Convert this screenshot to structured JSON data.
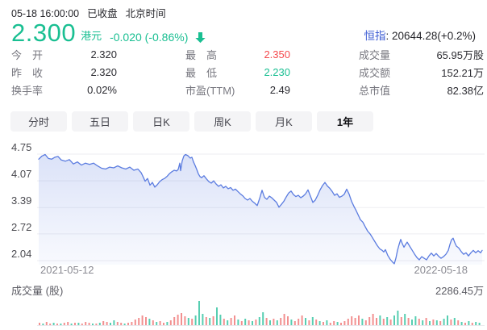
{
  "header": {
    "time": "05-18 16:00:00",
    "status": "已收盘",
    "timezone": "北京时间",
    "price": "2.300",
    "currency": "港元",
    "change": "-0.020 (-0.86%)",
    "index": {
      "label": "恒指",
      "value": ": 20644.28(+0.2%)"
    }
  },
  "colors": {
    "green": "#1abf92",
    "red": "#f5494d",
    "link_blue": "#3d5cd3",
    "line_blue": "#5b7ce0",
    "grid": "#ededf1",
    "vol_red": "#f29090",
    "vol_green": "#57ceb1"
  },
  "stats": {
    "cells": [
      {
        "label": "今　开",
        "value": "2.320",
        "color": "default"
      },
      {
        "label": "最　高",
        "value": "2.350",
        "color": "red"
      },
      {
        "label": "成交量",
        "value": "65.95万股",
        "color": "default"
      },
      {
        "label": "昨　收",
        "value": "2.320",
        "color": "default"
      },
      {
        "label": "最　低",
        "value": "2.230",
        "color": "green"
      },
      {
        "label": "成交额",
        "value": "152.21万",
        "color": "default"
      },
      {
        "label": "换手率",
        "value": "0.02%",
        "color": "default"
      },
      {
        "label": "市盈(TTM)",
        "value": "2.49",
        "color": "default"
      },
      {
        "label": "总市值",
        "value": "82.38亿",
        "color": "default"
      }
    ]
  },
  "tabs": {
    "items": [
      {
        "label": "分时",
        "active": false
      },
      {
        "label": "五日",
        "active": false
      },
      {
        "label": "日K",
        "active": false
      },
      {
        "label": "周K",
        "active": false
      },
      {
        "label": "月K",
        "active": false
      },
      {
        "label": "1年",
        "active": true
      }
    ]
  },
  "chart_data": {
    "type": "area",
    "title": "",
    "xlabel": "",
    "ylabel": "",
    "x_start_label": "2021-05-12",
    "x_end_label": "2022-05-18",
    "y_ticks": [
      4.75,
      4.07,
      3.39,
      2.72,
      2.04
    ],
    "y_range": [
      2.04,
      4.75
    ],
    "x_domain": [
      0,
      550
    ],
    "points": [
      [
        0,
        4.62
      ],
      [
        4,
        4.7
      ],
      [
        8,
        4.74
      ],
      [
        12,
        4.64
      ],
      [
        16,
        4.62
      ],
      [
        20,
        4.67
      ],
      [
        24,
        4.69
      ],
      [
        28,
        4.6
      ],
      [
        33,
        4.57
      ],
      [
        38,
        4.61
      ],
      [
        43,
        4.5
      ],
      [
        48,
        4.55
      ],
      [
        53,
        4.47
      ],
      [
        58,
        4.52
      ],
      [
        63,
        4.49
      ],
      [
        68,
        4.52
      ],
      [
        73,
        4.45
      ],
      [
        78,
        4.39
      ],
      [
        83,
        4.37
      ],
      [
        88,
        4.42
      ],
      [
        93,
        4.4
      ],
      [
        98,
        4.45
      ],
      [
        103,
        4.4
      ],
      [
        108,
        4.37
      ],
      [
        113,
        4.42
      ],
      [
        118,
        4.34
      ],
      [
        123,
        4.37
      ],
      [
        127,
        4.28
      ],
      [
        130,
        4.15
      ],
      [
        132,
        4.06
      ],
      [
        135,
        4.13
      ],
      [
        138,
        3.96
      ],
      [
        141,
        4.03
      ],
      [
        144,
        3.91
      ],
      [
        147,
        3.97
      ],
      [
        150,
        4.05
      ],
      [
        153,
        4.1
      ],
      [
        156,
        4.13
      ],
      [
        159,
        4.18
      ],
      [
        162,
        4.25
      ],
      [
        165,
        4.3
      ],
      [
        168,
        4.34
      ],
      [
        171,
        4.32
      ],
      [
        173,
        4.36
      ],
      [
        175,
        4.52
      ],
      [
        176,
        4.33
      ],
      [
        178,
        4.58
      ],
      [
        180,
        4.7
      ],
      [
        182,
        4.74
      ],
      [
        185,
        4.71
      ],
      [
        188,
        4.65
      ],
      [
        190,
        4.67
      ],
      [
        192,
        4.55
      ],
      [
        194,
        4.46
      ],
      [
        196,
        4.36
      ],
      [
        198,
        4.25
      ],
      [
        200,
        4.18
      ],
      [
        202,
        4.15
      ],
      [
        205,
        4.2
      ],
      [
        208,
        4.12
      ],
      [
        211,
        4.05
      ],
      [
        214,
        4.01
      ],
      [
        217,
        4.07
      ],
      [
        220,
        3.99
      ],
      [
        223,
        3.93
      ],
      [
        226,
        3.97
      ],
      [
        229,
        3.89
      ],
      [
        232,
        3.93
      ],
      [
        235,
        3.87
      ],
      [
        238,
        3.9
      ],
      [
        241,
        3.83
      ],
      [
        244,
        3.86
      ],
      [
        247,
        3.8
      ],
      [
        250,
        3.74
      ],
      [
        253,
        3.69
      ],
      [
        256,
        3.62
      ],
      [
        259,
        3.58
      ],
      [
        262,
        3.62
      ],
      [
        265,
        3.55
      ],
      [
        268,
        3.5
      ],
      [
        271,
        3.44
      ],
      [
        274,
        3.62
      ],
      [
        277,
        3.83
      ],
      [
        280,
        3.65
      ],
      [
        283,
        3.6
      ],
      [
        286,
        3.68
      ],
      [
        289,
        3.64
      ],
      [
        292,
        3.58
      ],
      [
        295,
        3.52
      ],
      [
        298,
        3.4
      ],
      [
        301,
        3.47
      ],
      [
        304,
        3.55
      ],
      [
        307,
        3.66
      ],
      [
        310,
        3.76
      ],
      [
        313,
        3.81
      ],
      [
        316,
        3.72
      ],
      [
        319,
        3.67
      ],
      [
        322,
        3.7
      ],
      [
        325,
        3.64
      ],
      [
        328,
        3.68
      ],
      [
        331,
        3.74
      ],
      [
        334,
        3.84
      ],
      [
        337,
        3.68
      ],
      [
        340,
        3.52
      ],
      [
        343,
        3.58
      ],
      [
        346,
        3.7
      ],
      [
        349,
        3.84
      ],
      [
        352,
        3.95
      ],
      [
        355,
        4.03
      ],
      [
        358,
        3.94
      ],
      [
        361,
        3.88
      ],
      [
        364,
        3.8
      ],
      [
        367,
        3.7
      ],
      [
        370,
        3.74
      ],
      [
        373,
        3.65
      ],
      [
        376,
        3.68
      ],
      [
        379,
        3.73
      ],
      [
        382,
        3.86
      ],
      [
        385,
        3.73
      ],
      [
        388,
        3.55
      ],
      [
        391,
        3.42
      ],
      [
        394,
        3.3
      ],
      [
        397,
        3.17
      ],
      [
        399,
        3.08
      ],
      [
        402,
        3.02
      ],
      [
        405,
        2.9
      ],
      [
        408,
        2.79
      ],
      [
        411,
        2.72
      ],
      [
        414,
        2.62
      ],
      [
        417,
        2.52
      ],
      [
        420,
        2.42
      ],
      [
        423,
        2.34
      ],
      [
        426,
        2.3
      ],
      [
        428,
        2.26
      ],
      [
        430,
        2.32
      ],
      [
        433,
        2.17
      ],
      [
        436,
        2.07
      ],
      [
        439,
        2.0
      ],
      [
        441,
        1.96
      ],
      [
        443,
        2.1
      ],
      [
        445,
        2.3
      ],
      [
        447,
        2.45
      ],
      [
        449,
        2.58
      ],
      [
        451,
        2.47
      ],
      [
        453,
        2.38
      ],
      [
        455,
        2.45
      ],
      [
        457,
        2.51
      ],
      [
        460,
        2.41
      ],
      [
        463,
        2.31
      ],
      [
        466,
        2.21
      ],
      [
        469,
        2.12
      ],
      [
        472,
        2.06
      ],
      [
        475,
        2.14
      ],
      [
        478,
        2.1
      ],
      [
        481,
        2.06
      ],
      [
        484,
        2.16
      ],
      [
        487,
        2.23
      ],
      [
        490,
        2.16
      ],
      [
        493,
        2.22
      ],
      [
        496,
        2.15
      ],
      [
        499,
        2.1
      ],
      [
        502,
        2.14
      ],
      [
        505,
        2.2
      ],
      [
        508,
        2.3
      ],
      [
        510,
        2.45
      ],
      [
        512,
        2.57
      ],
      [
        514,
        2.61
      ],
      [
        516,
        2.5
      ],
      [
        518,
        2.41
      ],
      [
        521,
        2.36
      ],
      [
        524,
        2.27
      ],
      [
        527,
        2.2
      ],
      [
        530,
        2.24
      ],
      [
        533,
        2.16
      ],
      [
        536,
        2.24
      ],
      [
        539,
        2.3
      ],
      [
        542,
        2.24
      ],
      [
        545,
        2.29
      ],
      [
        548,
        2.24
      ],
      [
        550,
        2.3
      ]
    ],
    "volume": {
      "label": "成交量 (股)",
      "max_label": "2286.45万",
      "bars": [
        [
          3,
          "r"
        ],
        [
          2,
          "g"
        ],
        [
          4,
          "r"
        ],
        [
          2,
          "r"
        ],
        [
          3,
          "g"
        ],
        [
          2,
          "r"
        ],
        [
          2,
          "g"
        ],
        [
          3,
          "r"
        ],
        [
          4,
          "r"
        ],
        [
          2,
          "g"
        ],
        [
          3,
          "r"
        ],
        [
          3,
          "g"
        ],
        [
          2,
          "r"
        ],
        [
          4,
          "r"
        ],
        [
          3,
          "r"
        ],
        [
          2,
          "g"
        ],
        [
          2,
          "r"
        ],
        [
          3,
          "g"
        ],
        [
          5,
          "r"
        ],
        [
          4,
          "r"
        ],
        [
          3,
          "g"
        ],
        [
          6,
          "g"
        ],
        [
          4,
          "r"
        ],
        [
          3,
          "r"
        ],
        [
          2,
          "g"
        ],
        [
          3,
          "r"
        ],
        [
          4,
          "r"
        ],
        [
          7,
          "r"
        ],
        [
          9,
          "r"
        ],
        [
          12,
          "r"
        ],
        [
          10,
          "r"
        ],
        [
          8,
          "g"
        ],
        [
          6,
          "r"
        ],
        [
          4,
          "g"
        ],
        [
          5,
          "r"
        ],
        [
          3,
          "r"
        ],
        [
          4,
          "g"
        ],
        [
          6,
          "r"
        ],
        [
          10,
          "r"
        ],
        [
          13,
          "r"
        ],
        [
          15,
          "r"
        ],
        [
          11,
          "r"
        ],
        [
          9,
          "g"
        ],
        [
          8,
          "r"
        ],
        [
          12,
          "g"
        ],
        [
          30,
          "g"
        ],
        [
          14,
          "g"
        ],
        [
          10,
          "r"
        ],
        [
          9,
          "g"
        ],
        [
          11,
          "r"
        ],
        [
          22,
          "g"
        ],
        [
          13,
          "g"
        ],
        [
          8,
          "r"
        ],
        [
          6,
          "g"
        ],
        [
          9,
          "r"
        ],
        [
          12,
          "r"
        ],
        [
          7,
          "g"
        ],
        [
          5,
          "r"
        ],
        [
          8,
          "g"
        ],
        [
          6,
          "r"
        ],
        [
          5,
          "g"
        ],
        [
          7,
          "r"
        ],
        [
          10,
          "g"
        ],
        [
          16,
          "g"
        ],
        [
          9,
          "r"
        ],
        [
          6,
          "g"
        ],
        [
          8,
          "r"
        ],
        [
          6,
          "g"
        ],
        [
          9,
          "r"
        ],
        [
          14,
          "r"
        ],
        [
          11,
          "r"
        ],
        [
          7,
          "g"
        ],
        [
          5,
          "r"
        ],
        [
          8,
          "r"
        ],
        [
          12,
          "r"
        ],
        [
          9,
          "g"
        ],
        [
          6,
          "r"
        ],
        [
          10,
          "g"
        ],
        [
          7,
          "r"
        ],
        [
          5,
          "g"
        ],
        [
          4,
          "r"
        ],
        [
          6,
          "g"
        ],
        [
          3,
          "r"
        ],
        [
          5,
          "r"
        ],
        [
          4,
          "g"
        ],
        [
          3,
          "r"
        ],
        [
          5,
          "r"
        ],
        [
          8,
          "r"
        ],
        [
          11,
          "r"
        ],
        [
          9,
          "r"
        ],
        [
          12,
          "r"
        ],
        [
          8,
          "g"
        ],
        [
          6,
          "r"
        ],
        [
          10,
          "r"
        ],
        [
          14,
          "r"
        ],
        [
          9,
          "r"
        ],
        [
          12,
          "g"
        ],
        [
          8,
          "r"
        ],
        [
          10,
          "g"
        ],
        [
          7,
          "r"
        ],
        [
          12,
          "g"
        ],
        [
          18,
          "g"
        ],
        [
          10,
          "r"
        ],
        [
          14,
          "g"
        ],
        [
          9,
          "r"
        ],
        [
          7,
          "g"
        ],
        [
          11,
          "g"
        ],
        [
          8,
          "r"
        ],
        [
          6,
          "g"
        ],
        [
          9,
          "r"
        ],
        [
          5,
          "g"
        ],
        [
          7,
          "r"
        ],
        [
          6,
          "g"
        ],
        [
          5,
          "r"
        ],
        [
          8,
          "g"
        ],
        [
          12,
          "g"
        ],
        [
          7,
          "r"
        ],
        [
          9,
          "g"
        ],
        [
          6,
          "r"
        ],
        [
          4,
          "g"
        ],
        [
          3,
          "r"
        ],
        [
          5,
          "g"
        ],
        [
          3,
          "r"
        ],
        [
          4,
          "g"
        ],
        [
          3,
          "g"
        ]
      ]
    }
  }
}
